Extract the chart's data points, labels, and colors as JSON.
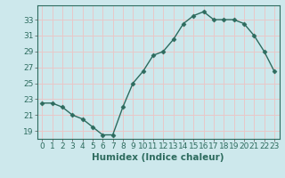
{
  "x": [
    0,
    1,
    2,
    3,
    4,
    5,
    6,
    7,
    8,
    9,
    10,
    11,
    12,
    13,
    14,
    15,
    16,
    17,
    18,
    19,
    20,
    21,
    22,
    23
  ],
  "y": [
    22.5,
    22.5,
    22.0,
    21.0,
    20.5,
    19.5,
    18.5,
    18.5,
    22.0,
    25.0,
    26.5,
    28.5,
    29.0,
    30.5,
    32.5,
    33.5,
    34.0,
    33.0,
    33.0,
    33.0,
    32.5,
    31.0,
    29.0,
    26.5
  ],
  "line_color": "#2d6b5e",
  "marker": "D",
  "marker_size": 2.5,
  "bg_color": "#cde8ec",
  "grid_color": "#e8c8c8",
  "xlabel": "Humidex (Indice chaleur)",
  "ylim": [
    18.0,
    34.8
  ],
  "yticks": [
    19,
    21,
    23,
    25,
    27,
    29,
    31,
    33
  ],
  "xticks": [
    0,
    1,
    2,
    3,
    4,
    5,
    6,
    7,
    8,
    9,
    10,
    11,
    12,
    13,
    14,
    15,
    16,
    17,
    18,
    19,
    20,
    21,
    22,
    23
  ],
  "xlabel_fontsize": 7.5,
  "tick_fontsize": 6.5,
  "line_width": 1.0
}
